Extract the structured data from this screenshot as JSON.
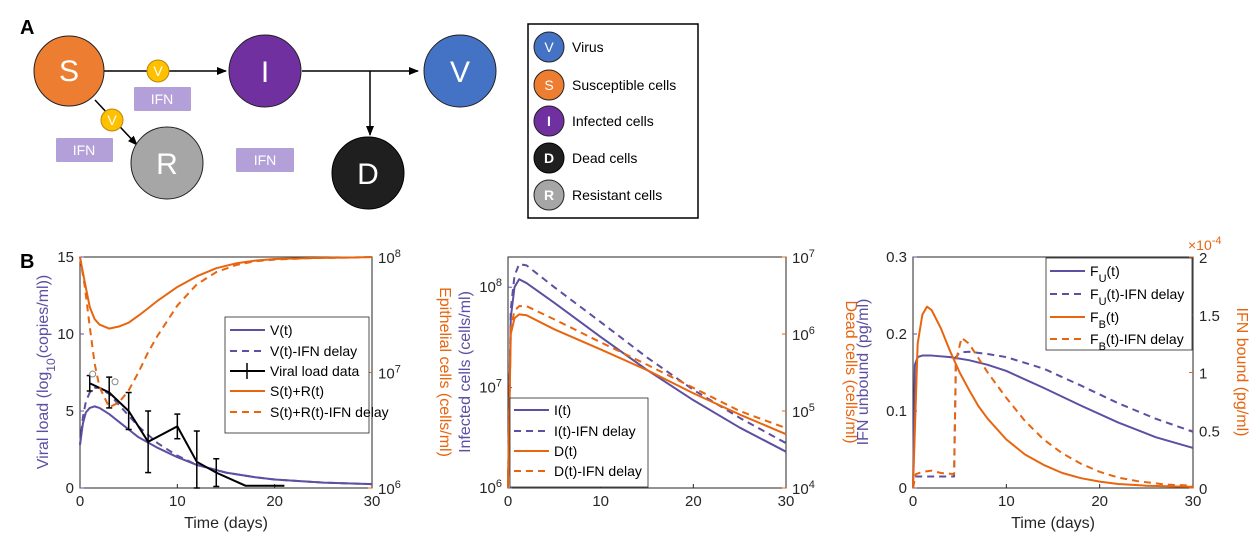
{
  "panel_a": {
    "label": "A",
    "nodes": {
      "S": {
        "letter": "S",
        "color": "#ED7D31"
      },
      "I": {
        "letter": "I",
        "color": "#7030A0"
      },
      "V": {
        "letter": "V",
        "color": "#4472C4"
      },
      "R": {
        "letter": "R",
        "color": "#A6A6A6"
      },
      "D": {
        "letter": "D",
        "color": "#1F1F1F"
      }
    },
    "virus_badge": "V",
    "ifn_label": "IFN",
    "legend": [
      {
        "letter": "V",
        "label": "Virus",
        "color": "#4472C4"
      },
      {
        "letter": "S",
        "label": "Susceptible cells",
        "color": "#ED7D31"
      },
      {
        "letter": "I",
        "label": "Infected cells",
        "color": "#7030A0"
      },
      {
        "letter": "D",
        "label": "Dead cells",
        "color": "#1F1F1F"
      },
      {
        "letter": "R",
        "label": "Resistant cells",
        "color": "#A6A6A6"
      }
    ]
  },
  "panel_b": {
    "label": "B"
  },
  "colors": {
    "purple": "#5E4FA2",
    "orange": "#E8650F",
    "data": "#000000"
  },
  "chart_data": [
    {
      "type": "line",
      "xlabel": "Time (days)",
      "ylabel_left": "Viral load (log10(copies/ml))",
      "ylabel_right": "Epithelial cells (cells/ml)",
      "xlim": [
        0,
        30
      ],
      "xticks": [
        "0",
        "10",
        "20",
        "30"
      ],
      "ylim_left": [
        0,
        15
      ],
      "yticks_left": [
        "0",
        "5",
        "10",
        "15"
      ],
      "ylim_right": [
        1000000,
        100000000
      ],
      "yscale_right": "log",
      "yticks_right": [
        "10^6",
        "10^7",
        "10^8"
      ],
      "legend_position": "center-right",
      "series": [
        {
          "name": "V(t)",
          "axis": "left",
          "style": "solid",
          "color": "#5E4FA2",
          "x": [
            0,
            0.3,
            0.6,
            1,
            1.5,
            2,
            3,
            4,
            5,
            6,
            8,
            10,
            12,
            15,
            18,
            20,
            25,
            30
          ],
          "y": [
            2.8,
            4.2,
            4.9,
            5.2,
            5.3,
            5.2,
            4.8,
            4.3,
            3.8,
            3.3,
            2.6,
            2.0,
            1.5,
            1.0,
            0.7,
            0.55,
            0.35,
            0.25
          ]
        },
        {
          "name": "V(t)-IFN delay",
          "axis": "left",
          "style": "dashed",
          "color": "#5E4FA2",
          "x": [
            0,
            0.3,
            0.6,
            1,
            1.5,
            2,
            3,
            4,
            5,
            6,
            8,
            10,
            12,
            15,
            18,
            20,
            25,
            30
          ],
          "y": [
            2.8,
            4.6,
            5.6,
            6.2,
            6.5,
            6.5,
            6.1,
            5.4,
            4.7,
            4.0,
            2.9,
            2.1,
            1.5,
            1.0,
            0.7,
            0.55,
            0.35,
            0.25
          ]
        },
        {
          "name": "Viral load data",
          "axis": "left",
          "style": "errorbar",
          "color": "#000000",
          "x": [
            1,
            3,
            5,
            7,
            10,
            12,
            14,
            17,
            21
          ],
          "y": [
            6.8,
            6.2,
            5.0,
            3.0,
            4.0,
            1.7,
            1.0,
            0.15,
            0.15
          ],
          "err": [
            0.5,
            1.0,
            1.2,
            2.0,
            0.8,
            2.0,
            0.9,
            0,
            0
          ]
        },
        {
          "name": "S(t)+R(t)",
          "axis": "right",
          "style": "solid",
          "color": "#E8650F",
          "x": [
            0,
            0.5,
            1,
            1.5,
            2,
            3,
            4,
            5,
            6,
            7,
            8,
            10,
            12,
            14,
            16,
            18,
            20,
            24,
            28,
            30
          ],
          "y": [
            100000000,
            60000000,
            37000000,
            29000000,
            26000000,
            24000000,
            25000000,
            27000000,
            31000000,
            36000000,
            42000000,
            55000000,
            68000000,
            80000000,
            88000000,
            93000000,
            96000000,
            98000000,
            99000000,
            100000000
          ]
        },
        {
          "name": "S(t)+R(t)-IFN delay",
          "axis": "right",
          "style": "dashed",
          "color": "#E8650F",
          "x": [
            0,
            0.5,
            1,
            1.5,
            2,
            3,
            4,
            5,
            6,
            7,
            8,
            10,
            12,
            14,
            16,
            18,
            20,
            24,
            28,
            30
          ],
          "y": [
            100000000,
            55000000,
            25000000,
            12000000,
            7500000,
            5000000,
            5500000,
            7000000,
            10000000,
            15000000,
            21000000,
            38000000,
            58000000,
            74000000,
            85000000,
            92000000,
            95000000,
            98000000,
            99000000,
            100000000
          ]
        }
      ],
      "annotations": [
        {
          "type": "point",
          "x": 1.3,
          "y": 7.4
        },
        {
          "type": "point",
          "x": 3.6,
          "y": 6.9
        }
      ]
    },
    {
      "type": "line",
      "xlabel": "",
      "ylabel_left": "Infected cells (cells/ml)",
      "ylabel_right": "Dead cells (cells/ml)",
      "xlim": [
        0,
        30
      ],
      "xticks": [
        "0",
        "10",
        "20",
        "30"
      ],
      "ylim_left": [
        1000000,
        200000000
      ],
      "yscale_left": "log",
      "yticks_left": [
        "10^6",
        "10^7",
        "10^8"
      ],
      "ylim_right": [
        10000,
        10000000
      ],
      "yscale_right": "log",
      "yticks_right": [
        "10^4",
        "10^5",
        "10^6",
        "10^7"
      ],
      "legend_position": "bottom-left",
      "series": [
        {
          "name": "I(t)",
          "axis": "left",
          "style": "solid",
          "color": "#5E4FA2",
          "x": [
            0,
            0.3,
            0.7,
            1.2,
            2,
            5,
            10,
            15,
            20,
            25,
            30
          ],
          "y": [
            1000000,
            50000000,
            100000000,
            120000000,
            110000000,
            70000000,
            32000000,
            15000000,
            7500000,
            4000000,
            2300000
          ]
        },
        {
          "name": "I(t)-IFN delay",
          "axis": "left",
          "style": "dashed",
          "color": "#5E4FA2",
          "x": [
            0,
            0.3,
            0.7,
            1.2,
            2,
            5,
            10,
            15,
            20,
            25,
            30
          ],
          "y": [
            1000000,
            60000000,
            130000000,
            170000000,
            165000000,
            100000000,
            45000000,
            20000000,
            9500000,
            5000000,
            2800000
          ]
        },
        {
          "name": "D(t)",
          "axis": "right",
          "style": "solid",
          "color": "#E8650F",
          "x": [
            0,
            0.3,
            0.7,
            1.2,
            2,
            5,
            10,
            15,
            20,
            25,
            30
          ],
          "y": [
            10000,
            1000000,
            1600000,
            1800000,
            1750000,
            1150000,
            630000,
            340000,
            170000,
            90000,
            50000
          ]
        },
        {
          "name": "D(t)-IFN delay",
          "axis": "right",
          "style": "dashed",
          "color": "#E8650F",
          "x": [
            0,
            0.3,
            0.7,
            1.2,
            2,
            5,
            10,
            15,
            20,
            25,
            30
          ],
          "y": [
            10000,
            1200000,
            2000000,
            2300000,
            2300000,
            1550000,
            780000,
            400000,
            200000,
            100000,
            60000
          ]
        }
      ]
    },
    {
      "type": "line",
      "xlabel": "Time (days)",
      "ylabel_left": "IFN unbound (pg/ml)",
      "ylabel_right": "IFN bound (pg/ml)",
      "xlim": [
        0,
        30
      ],
      "xticks": [
        "0",
        "10",
        "20",
        "30"
      ],
      "ylim_left": [
        0,
        0.3
      ],
      "yticks_left": [
        "0",
        "0.1",
        "0.2",
        "0.3"
      ],
      "ylim_right": [
        0,
        2
      ],
      "yticks_right": [
        "0",
        "0.5",
        "1",
        "1.5",
        "2"
      ],
      "right_axis_multiplier": "×10^-4",
      "legend_position": "top-right",
      "series": [
        {
          "name": "FU(t)",
          "axis": "left",
          "style": "solid",
          "color": "#5E4FA2",
          "x": [
            0,
            0.2,
            0.5,
            1,
            2,
            4,
            6,
            8,
            10,
            14,
            18,
            22,
            26,
            30
          ],
          "y": [
            0,
            0.16,
            0.17,
            0.172,
            0.172,
            0.17,
            0.166,
            0.16,
            0.152,
            0.13,
            0.107,
            0.085,
            0.066,
            0.052
          ]
        },
        {
          "name": "FU(t)-IFN delay",
          "axis": "left",
          "style": "dashed",
          "color": "#5E4FA2",
          "x": [
            0,
            0.2,
            1,
            3,
            4.4,
            4.6,
            5,
            6,
            8,
            10,
            14,
            18,
            22,
            26,
            30
          ],
          "y": [
            0,
            0.015,
            0.015,
            0.015,
            0.015,
            0.17,
            0.176,
            0.177,
            0.174,
            0.17,
            0.155,
            0.133,
            0.11,
            0.09,
            0.073
          ]
        },
        {
          "name": "FB(t)",
          "axis": "right",
          "style": "solid",
          "color": "#E8650F",
          "x": [
            0,
            0.5,
            1,
            1.5,
            2,
            3,
            4,
            5,
            6,
            7,
            8,
            10,
            12,
            14,
            16,
            18,
            20,
            22,
            25,
            30
          ],
          "y": [
            0,
            1.25,
            1.5,
            1.57,
            1.54,
            1.38,
            1.18,
            1.0,
            0.85,
            0.71,
            0.6,
            0.42,
            0.29,
            0.2,
            0.13,
            0.085,
            0.055,
            0.035,
            0.02,
            0.01
          ]
        },
        {
          "name": "FB(t)-IFN delay",
          "axis": "right",
          "style": "dashed",
          "color": "#E8650F",
          "x": [
            0,
            0.3,
            1,
            2,
            3,
            4.4,
            4.6,
            5.2,
            6,
            8,
            10,
            12,
            14,
            16,
            18,
            20,
            22,
            24,
            27,
            30
          ],
          "y": [
            0,
            0.12,
            0.14,
            0.15,
            0.13,
            0.12,
            1.1,
            1.3,
            1.25,
            1.0,
            0.78,
            0.58,
            0.42,
            0.3,
            0.21,
            0.14,
            0.09,
            0.06,
            0.03,
            0.02
          ]
        }
      ]
    }
  ]
}
